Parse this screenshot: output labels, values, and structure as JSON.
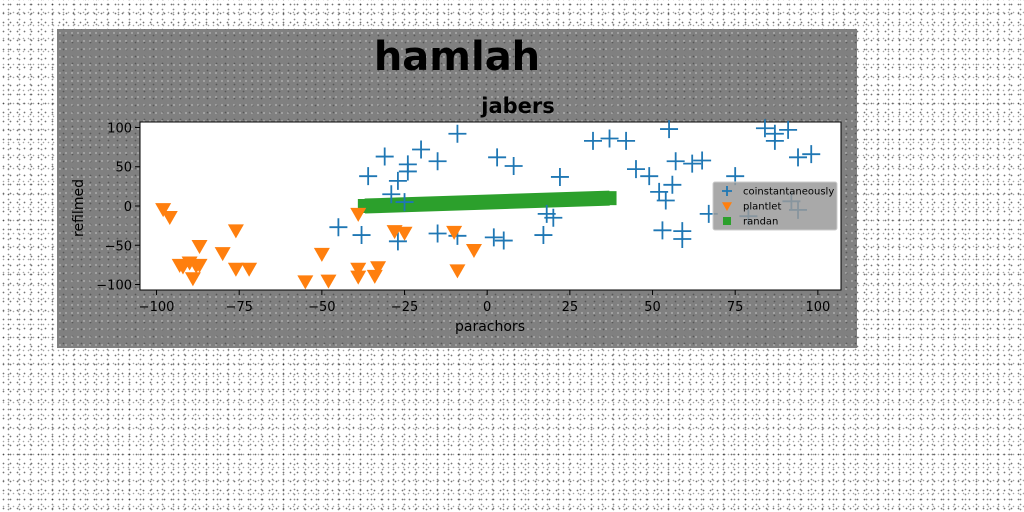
{
  "chart_data": {
    "type": "scatter",
    "suptitle": "hamlah",
    "title": "jabers",
    "xlabel": "parachors",
    "ylabel": "refilmed",
    "xlim": [
      -105,
      107
    ],
    "ylim": [
      -107,
      107
    ],
    "xticks": [
      -100,
      -75,
      -50,
      -25,
      0,
      25,
      50,
      75,
      100
    ],
    "yticks": [
      -100,
      -50,
      0,
      50,
      100
    ],
    "xtick_labels": [
      "−100",
      "−75",
      "−50",
      "−25",
      "0",
      "25",
      "50",
      "75",
      "100"
    ],
    "ytick_labels": [
      "−100",
      "−50",
      "0",
      "50",
      "100"
    ],
    "grid": false,
    "legend_position": "center-right",
    "series": [
      {
        "name": "coinstantaneously",
        "marker": "plus",
        "color": "#1f77b4",
        "points": [
          [
            -36,
            38
          ],
          [
            -31,
            63
          ],
          [
            -27,
            32
          ],
          [
            -24,
            53
          ],
          [
            -24,
            44
          ],
          [
            -20,
            72
          ],
          [
            -15,
            57
          ],
          [
            -9,
            92
          ],
          [
            -38,
            -37
          ],
          [
            -27,
            -45
          ],
          [
            -15,
            -35
          ],
          [
            -9,
            -38
          ],
          [
            -45,
            -27
          ],
          [
            3,
            62
          ],
          [
            8,
            51
          ],
          [
            22,
            37
          ],
          [
            32,
            83
          ],
          [
            37,
            86
          ],
          [
            42,
            83
          ],
          [
            45,
            47
          ],
          [
            49,
            38
          ],
          [
            52,
            18
          ],
          [
            54,
            7
          ],
          [
            56,
            27
          ],
          [
            55,
            98
          ],
          [
            57,
            57
          ],
          [
            62,
            54
          ],
          [
            65,
            58
          ],
          [
            75,
            38
          ],
          [
            84,
            99
          ],
          [
            87,
            83
          ],
          [
            87,
            92
          ],
          [
            91,
            97
          ],
          [
            94,
            62
          ],
          [
            98,
            66
          ],
          [
            2,
            -40
          ],
          [
            5,
            -44
          ],
          [
            17,
            -37
          ],
          [
            18,
            -10
          ],
          [
            20,
            -15
          ],
          [
            53,
            -31
          ],
          [
            59,
            -32
          ],
          [
            59,
            -42
          ],
          [
            67,
            -10
          ],
          [
            79,
            -13
          ],
          [
            92,
            6
          ],
          [
            94,
            -5
          ],
          [
            -25,
            5
          ],
          [
            -29,
            15
          ]
        ]
      },
      {
        "name": "plantlet",
        "marker": "triangle-down",
        "color": "#ff7f0e",
        "points": [
          [
            -98,
            -4
          ],
          [
            -96,
            -14
          ],
          [
            -93,
            -75
          ],
          [
            -92,
            -77
          ],
          [
            -90,
            -72
          ],
          [
            -89,
            -92
          ],
          [
            -88,
            -76
          ],
          [
            -87,
            -51
          ],
          [
            -87,
            -75
          ],
          [
            -80,
            -60
          ],
          [
            -76,
            -31
          ],
          [
            -76,
            -80
          ],
          [
            -72,
            -80
          ],
          [
            -55,
            -96
          ],
          [
            -50,
            -61
          ],
          [
            -48,
            -95
          ],
          [
            -39,
            -10
          ],
          [
            -39,
            -90
          ],
          [
            -39,
            -80
          ],
          [
            -34,
            -89
          ],
          [
            -33,
            -78
          ],
          [
            -28,
            -32
          ],
          [
            -25,
            -34
          ],
          [
            -10,
            -33
          ],
          [
            -9,
            -82
          ],
          [
            -4,
            -56
          ]
        ]
      },
      {
        "name": "randan",
        "marker": "square",
        "color": "#2ca02c",
        "points": [
          [
            -37,
            0
          ],
          [
            37,
            10
          ]
        ]
      }
    ]
  }
}
